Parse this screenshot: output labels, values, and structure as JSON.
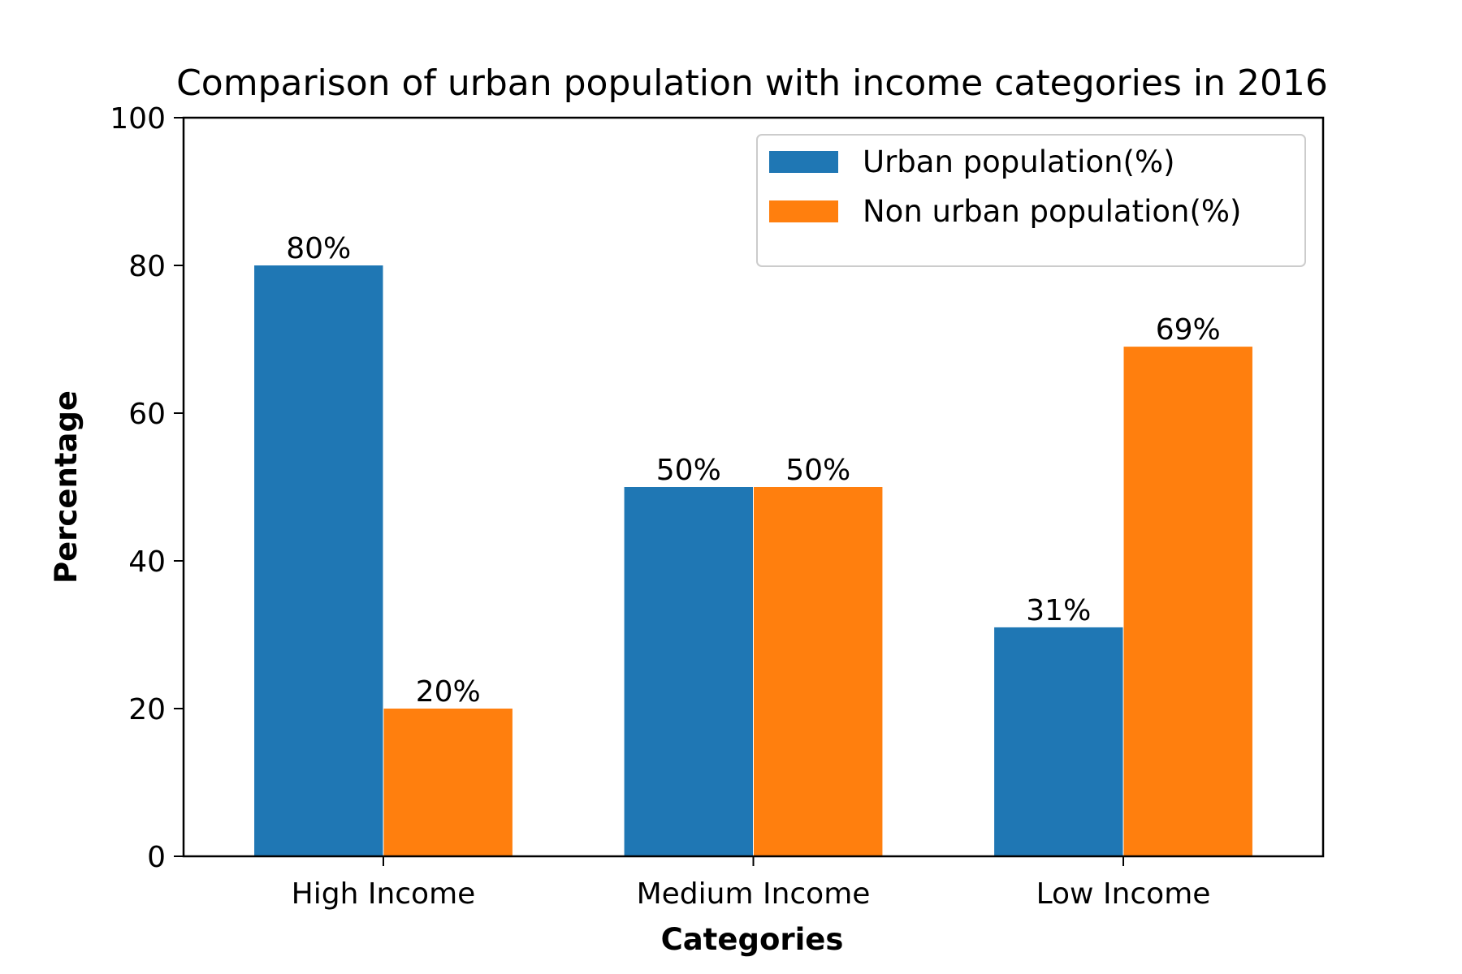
{
  "chart_data": {
    "type": "bar",
    "title": "Comparison of urban population with income categories in 2016",
    "xlabel": "Categories",
    "ylabel": "Percentage",
    "ylim": [
      0,
      100
    ],
    "yticks": [
      0,
      20,
      40,
      60,
      80,
      100
    ],
    "categories": [
      "High Income",
      "Medium Income",
      "Low Income"
    ],
    "series": [
      {
        "name": "Urban population(%)",
        "color": "#1f77b4",
        "values": [
          80,
          50,
          31
        ],
        "labels": [
          "80%",
          "50%",
          "31%"
        ]
      },
      {
        "name": "Non urban population(%)",
        "color": "#ff7f0e",
        "values": [
          20,
          50,
          69
        ],
        "labels": [
          "20%",
          "50%",
          "69%"
        ]
      }
    ],
    "grid": false,
    "legend_position": "top-right"
  }
}
